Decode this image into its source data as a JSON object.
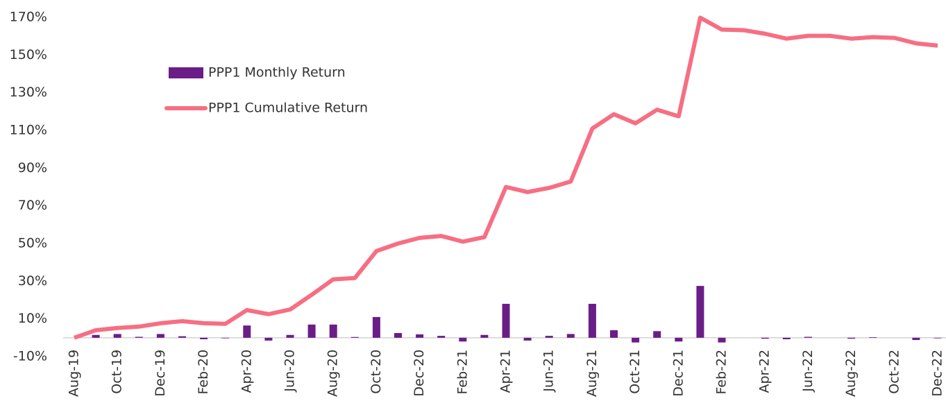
{
  "chart_data": {
    "type": "bar_line",
    "categories": [
      "Aug-19",
      null,
      "Oct-19",
      null,
      "Dec-19",
      null,
      "Feb-20",
      null,
      "Apr-20",
      null,
      "Jun-20",
      null,
      "Aug-20",
      null,
      "Oct-20",
      null,
      "Dec-20",
      null,
      "Feb-21",
      null,
      "Apr-21",
      null,
      "Jun-21",
      null,
      "Aug-21",
      null,
      "Oct-21",
      null,
      "Dec-21",
      null,
      "Feb-22",
      null,
      "Apr-22",
      null,
      "Jun-22",
      null,
      "Aug-22",
      null,
      "Oct-22",
      null,
      "Dec-22"
    ],
    "series": [
      {
        "name": "PPP1 Monthly Return",
        "type": "bar",
        "color": "#6b1d87",
        "values": [
          0,
          1.5,
          2,
          0.5,
          2,
          0.8,
          -0.8,
          -0.3,
          6.5,
          -1.5,
          1.5,
          7,
          7,
          0.4,
          11,
          2.5,
          1.8,
          1,
          -2,
          1.5,
          18,
          -1.5,
          1,
          2,
          18,
          4,
          -2.5,
          3.5,
          -2,
          27.5,
          -2.5,
          0,
          -0.5,
          -0.8,
          0.5,
          0,
          -0.5,
          0.3,
          0,
          -1.2,
          -0.3
        ]
      },
      {
        "name": "PPP1 Cumulative Return",
        "type": "line",
        "color": "#f76e82",
        "values": [
          0,
          4,
          5.2,
          5.9,
          7.7,
          8.8,
          7.7,
          7.4,
          14.7,
          12.5,
          15,
          22.8,
          31,
          31.7,
          46,
          50,
          53,
          54,
          51,
          53.4,
          80,
          77.3,
          79.5,
          82.9,
          111,
          118.6,
          113.8,
          121,
          117.5,
          169.8,
          163.5,
          163.2,
          161.3,
          158.7,
          160.2,
          160.2,
          158.7,
          159.5,
          159.1,
          156.2,
          155
        ]
      }
    ],
    "ylim": [
      -10,
      170
    ],
    "yticks": [
      {
        "value": -10,
        "label": "-10%"
      },
      {
        "value": 10,
        "label": "10%"
      },
      {
        "value": 30,
        "label": "30%"
      },
      {
        "value": 50,
        "label": "50%"
      },
      {
        "value": 70,
        "label": "70%"
      },
      {
        "value": 90,
        "label": "90%"
      },
      {
        "value": 110,
        "label": "110%"
      },
      {
        "value": 130,
        "label": "130%"
      },
      {
        "value": 150,
        "label": "150%"
      },
      {
        "value": 170,
        "label": "170%"
      }
    ],
    "grid": false,
    "legend": "upper left"
  }
}
